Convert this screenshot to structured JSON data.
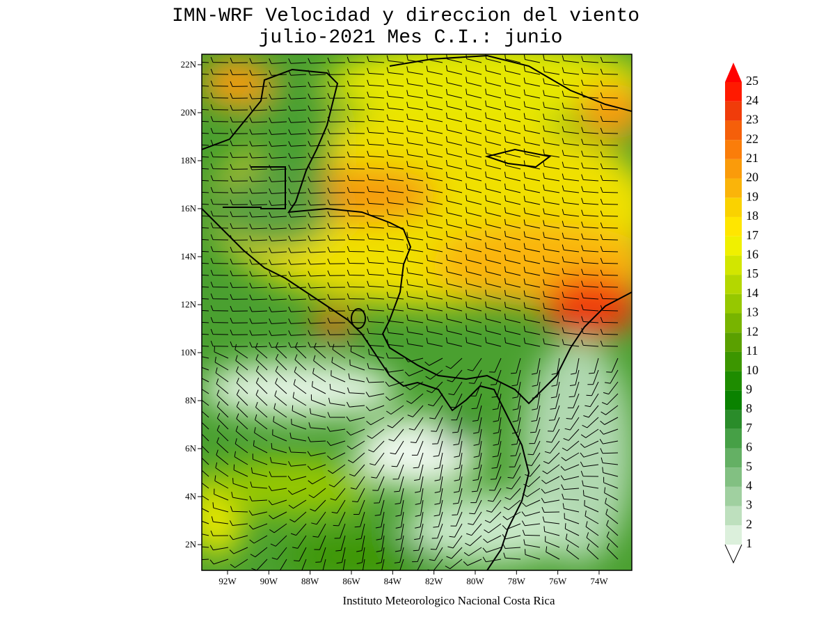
{
  "title": [
    "IMN-WRF Velocidad y direccion del viento",
    "julio-2021 Mes C.I.: junio"
  ],
  "lat_labels": [
    "22N",
    "20N",
    "18N",
    "16N",
    "14N",
    "12N",
    "10N",
    "8N",
    "6N",
    "4N",
    "2N"
  ],
  "lon_labels": [
    "92W",
    "90W",
    "88W",
    "86W",
    "84W",
    "82W",
    "80W",
    "78W",
    "76W",
    "74W"
  ],
  "colorbar": {
    "levels": [
      1,
      2,
      3,
      4,
      5,
      6,
      7,
      8,
      9,
      10,
      11,
      12,
      13,
      14,
      15,
      16,
      17,
      18,
      19,
      20,
      21,
      22,
      23,
      24,
      25
    ],
    "colors": [
      "#dcf0dc",
      "#bee0be",
      "#a0d0a0",
      "#82c082",
      "#64b064",
      "#46a046",
      "#2a8c2a",
      "#0a8200",
      "#1e8c00",
      "#3c9600",
      "#5aa000",
      "#78b400",
      "#96c800",
      "#b4d700",
      "#d2e600",
      "#f0f000",
      "#ffe600",
      "#fad200",
      "#fab40a",
      "#fa9b0a",
      "#fa7d0a",
      "#f55f0a",
      "#f03c0a",
      "#ff1a00"
    ],
    "over_color": "#ff0000"
  },
  "footer": "Instituto Meteorologico Nacional Costa Rica"
}
